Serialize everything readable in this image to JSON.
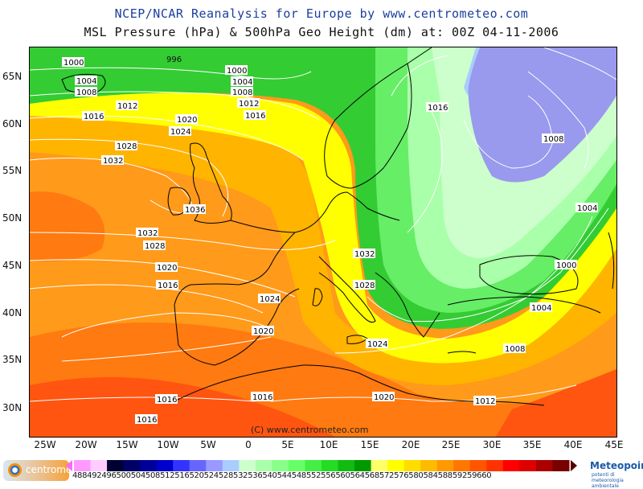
{
  "header": {
    "title": "NCEP/NCAR Reanalysis for Europe by www.centrometeo.com",
    "subtitle": "MSL Pressure (hPa) & 500hPa Geo Height (dm) at: 00Z 04-11-2006"
  },
  "axes": {
    "lat_labels": [
      "65N",
      "60N",
      "55N",
      "50N",
      "45N",
      "40N",
      "35N",
      "30N"
    ],
    "lon_labels": [
      "25W",
      "20W",
      "15W",
      "10W",
      "5W",
      "0",
      "5E",
      "10E",
      "15E",
      "20E",
      "25E",
      "30E",
      "35E",
      "40E",
      "45E"
    ]
  },
  "isobars": [
    {
      "text": "1000"
    },
    {
      "text": "996"
    },
    {
      "text": "1004"
    },
    {
      "text": "1008"
    },
    {
      "text": "1000"
    },
    {
      "text": "1004"
    },
    {
      "text": "1008"
    },
    {
      "text": "1012"
    },
    {
      "text": "1012"
    },
    {
      "text": "1016"
    },
    {
      "text": "1016"
    },
    {
      "text": "1020"
    },
    {
      "text": "1024"
    },
    {
      "text": "1028"
    },
    {
      "text": "1032"
    },
    {
      "text": "1016"
    },
    {
      "text": "1008"
    },
    {
      "text": "1036"
    },
    {
      "text": "1004"
    },
    {
      "text": "1032"
    },
    {
      "text": "1028"
    },
    {
      "text": "1020"
    },
    {
      "text": "1000"
    },
    {
      "text": "1032"
    },
    {
      "text": "1016"
    },
    {
      "text": "1028"
    },
    {
      "text": "1024"
    },
    {
      "text": "1004"
    },
    {
      "text": "1020"
    },
    {
      "text": "1024"
    },
    {
      "text": "1008"
    },
    {
      "text": "1016"
    },
    {
      "text": "1016"
    },
    {
      "text": "1020"
    },
    {
      "text": "1012"
    },
    {
      "text": "1016"
    }
  ],
  "copyright": "(C) www.centrometeo.com",
  "legend": {
    "labels_text": "48849249650050450851251652052452853253654054454855255656056456857257658058458859259660",
    "colors": [
      "#ff99ff",
      "#ffccff",
      "#000033",
      "#000066",
      "#000099",
      "#0000cc",
      "#3333ff",
      "#6666ff",
      "#9999ff",
      "#aaccff",
      "#ccffcc",
      "#aaffaa",
      "#88ff88",
      "#66ff66",
      "#44ee44",
      "#22dd22",
      "#11bb11",
      "#009900",
      "#ffff66",
      "#ffff00",
      "#ffdd00",
      "#ffbb00",
      "#ff9900",
      "#ff7700",
      "#ff5500",
      "#ff3300",
      "#ff0000",
      "#dd0000",
      "#aa0000",
      "#770000"
    ]
  },
  "logos": {
    "left_text": "centrometeo",
    "right_text": "Meteopoint",
    "right_sub": "potenti di meteorologia ambientale"
  }
}
